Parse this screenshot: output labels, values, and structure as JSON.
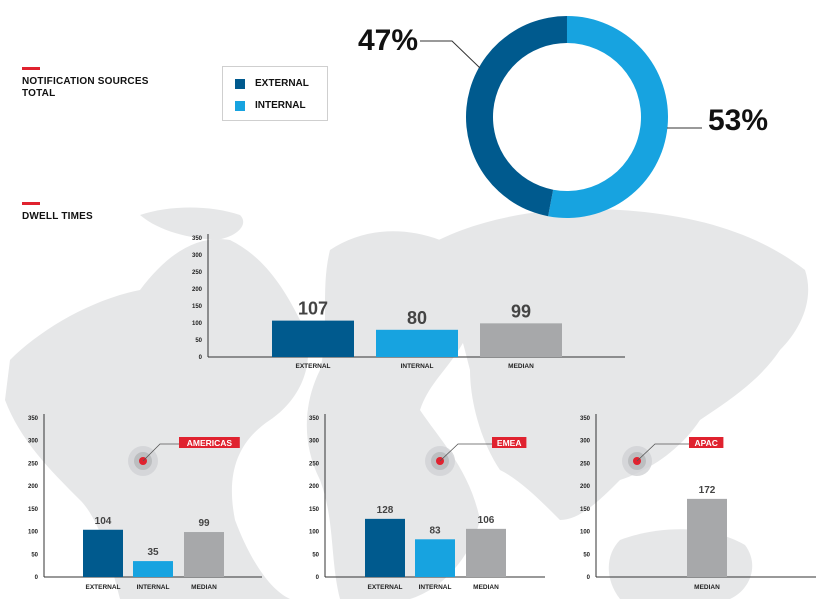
{
  "sections": {
    "notification_title_line1": "NOTIFICATION SOURCES",
    "notification_title_line2": "TOTAL",
    "dwell_title": "DWELL TIMES"
  },
  "legend": [
    {
      "label": "EXTERNAL",
      "color": "#005a8e"
    },
    {
      "label": "INTERNAL",
      "color": "#17a3e0"
    }
  ],
  "colors": {
    "external": "#005a8e",
    "internal": "#17a3e0",
    "median": "#a7a8aa",
    "accent": "#e0222f"
  },
  "chart_data": [
    {
      "type": "pie",
      "id": "donut",
      "labels": [
        "EXTERNAL",
        "INTERNAL"
      ],
      "values": [
        47,
        53
      ],
      "value_labels": [
        "47%",
        "53%"
      ]
    },
    {
      "type": "bar",
      "id": "total",
      "categories": [
        "EXTERNAL",
        "INTERNAL",
        "MEDIAN"
      ],
      "values": [
        107,
        80,
        99
      ],
      "ylim": [
        0,
        350
      ],
      "yticks": [
        0,
        50,
        100,
        150,
        200,
        250,
        300,
        350
      ]
    },
    {
      "type": "bar",
      "id": "americas",
      "region": "AMERICAS",
      "categories": [
        "EXTERNAL",
        "INTERNAL",
        "MEDIAN"
      ],
      "values": [
        104,
        35,
        99
      ],
      "ylim": [
        0,
        350
      ],
      "yticks": [
        0,
        50,
        100,
        150,
        200,
        250,
        300,
        350
      ]
    },
    {
      "type": "bar",
      "id": "emea",
      "region": "EMEA",
      "categories": [
        "EXTERNAL",
        "INTERNAL",
        "MEDIAN"
      ],
      "values": [
        128,
        83,
        106
      ],
      "ylim": [
        0,
        350
      ],
      "yticks": [
        0,
        50,
        100,
        150,
        200,
        250,
        300,
        350
      ]
    },
    {
      "type": "bar",
      "id": "apac",
      "region": "APAC",
      "categories": [
        "MEDIAN"
      ],
      "values": [
        172
      ],
      "ylim": [
        0,
        350
      ],
      "yticks": [
        0,
        50,
        100,
        150,
        200,
        250,
        300,
        350
      ]
    }
  ]
}
